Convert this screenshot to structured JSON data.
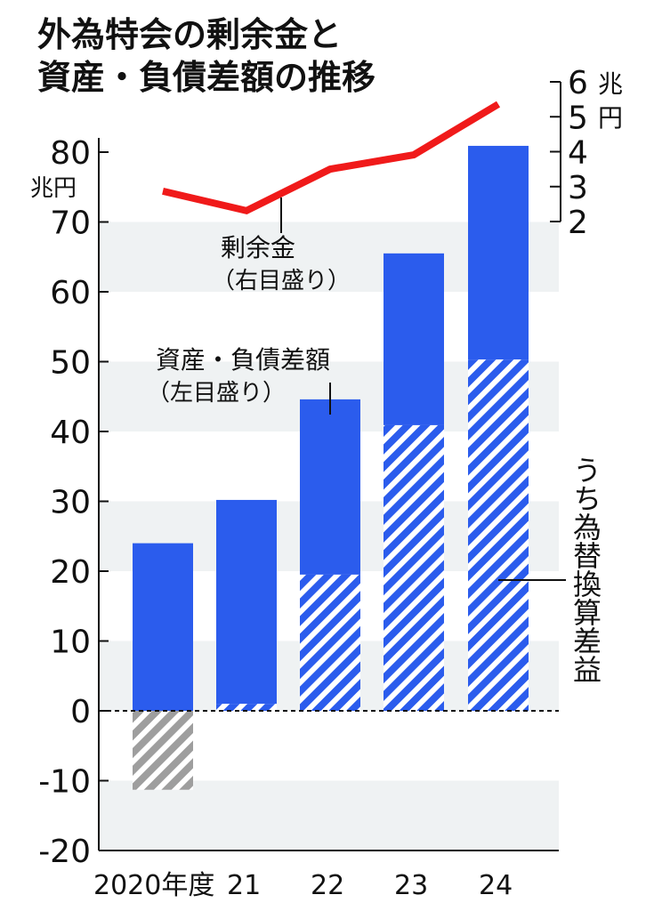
{
  "chart_data": {
    "type": "bar",
    "title": [
      "外為特会の剰余金と",
      "資産・負債差額の推移"
    ],
    "categories": [
      "2020年度",
      "21",
      "22",
      "23",
      "24"
    ],
    "left_axis": {
      "unit": "兆円",
      "ylim": [
        -20,
        80
      ],
      "ticks": [
        80,
        70,
        60,
        50,
        40,
        30,
        20,
        10,
        0,
        -10,
        -20
      ]
    },
    "right_axis": {
      "unit": [
        "兆",
        "円"
      ],
      "ylim": [
        2,
        6
      ],
      "ticks": [
        6,
        5,
        4,
        3,
        2
      ]
    },
    "series": [
      {
        "name": "資産・負債差額",
        "axis_note": "（左目盛り）",
        "type": "bar",
        "values": [
          24.0,
          30.2,
          44.6,
          65.5,
          80.9
        ],
        "color": "#2b5ced"
      },
      {
        "name": "うち為替換算差益",
        "type": "bar-hatched",
        "values": [
          -11.3,
          1.0,
          19.5,
          40.9,
          50.3
        ],
        "color": "#2b5ced",
        "negative_color": "#9e9e9e"
      },
      {
        "name": "剰余金",
        "axis_note": "（右目盛り）",
        "type": "line",
        "axis": "right",
        "values": [
          2.87,
          2.31,
          3.5,
          3.91,
          5.36
        ],
        "color": "#f01a1a"
      }
    ],
    "grid": "alternating horizontal bands",
    "band_color": "#eff2f3"
  }
}
